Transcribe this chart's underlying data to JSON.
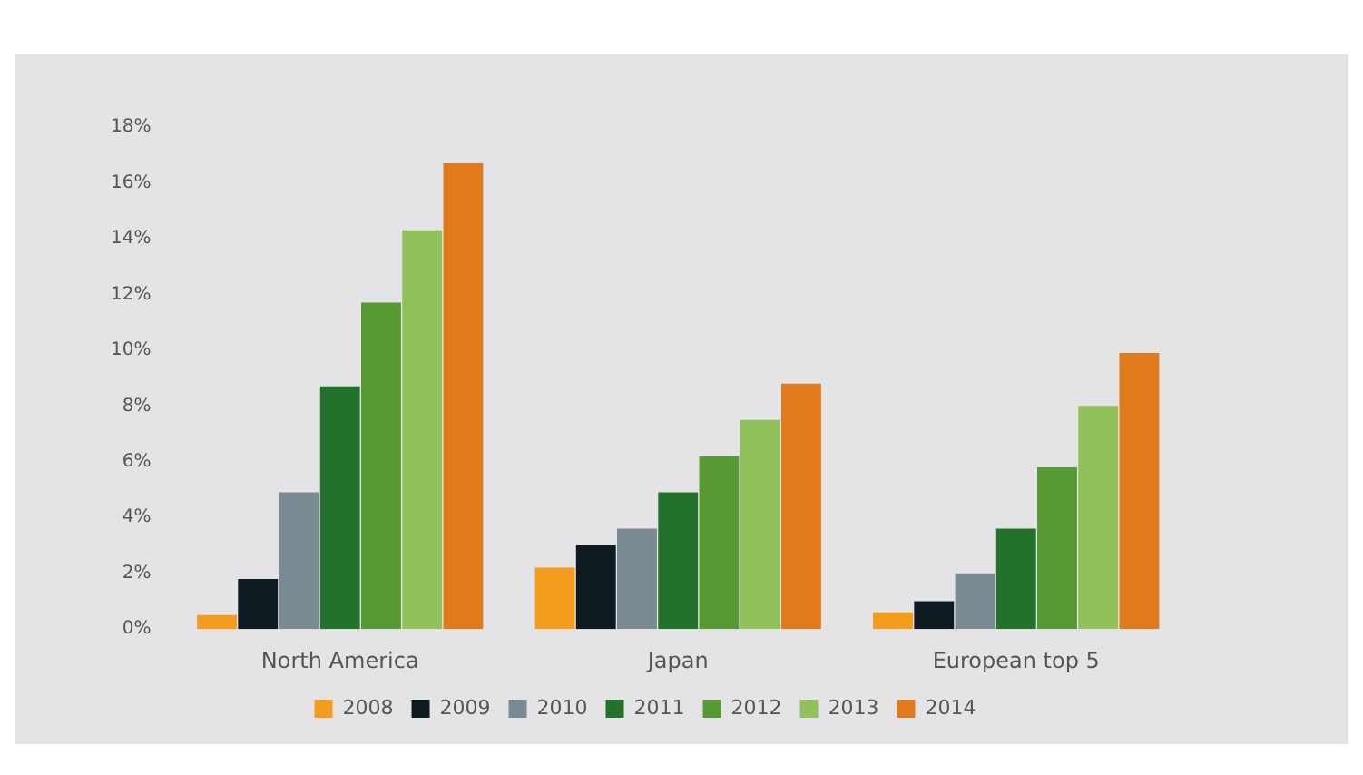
{
  "chart_data": {
    "type": "bar",
    "categories": [
      "North America",
      "Japan",
      "European top 5"
    ],
    "series": [
      {
        "name": "2008",
        "color": "#f39c1e",
        "values": [
          0.5,
          2.2,
          0.6
        ]
      },
      {
        "name": "2009",
        "color": "#0d1a1f",
        "values": [
          1.8,
          3.0,
          1.0
        ]
      },
      {
        "name": "2010",
        "color": "#7a8a92",
        "values": [
          4.9,
          3.6,
          2.0
        ]
      },
      {
        "name": "2011",
        "color": "#23722b",
        "values": [
          8.7,
          4.9,
          3.6
        ]
      },
      {
        "name": "2012",
        "color": "#579a34",
        "values": [
          11.7,
          6.2,
          5.8
        ]
      },
      {
        "name": "2013",
        "color": "#92c05a",
        "values": [
          14.3,
          7.5,
          8.0
        ]
      },
      {
        "name": "2014",
        "color": "#e07a1d",
        "values": [
          16.7,
          8.8,
          9.9
        ]
      }
    ],
    "ylim": [
      0,
      18
    ],
    "yticks": [
      {
        "value": 0,
        "label": "0%"
      },
      {
        "value": 2,
        "label": "2%"
      },
      {
        "value": 4,
        "label": "4%"
      },
      {
        "value": 6,
        "label": "6%"
      },
      {
        "value": 8,
        "label": "8%"
      },
      {
        "value": 10,
        "label": "10%"
      },
      {
        "value": 12,
        "label": "12%"
      },
      {
        "value": 14,
        "label": "14%"
      },
      {
        "value": 16,
        "label": "16%"
      },
      {
        "value": 18,
        "label": "18%"
      }
    ],
    "grid": false,
    "legend": "bottom"
  }
}
